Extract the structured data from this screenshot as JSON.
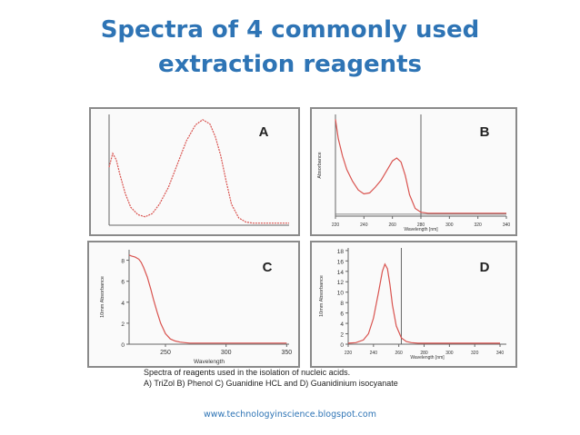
{
  "slide": {
    "title_line1": "Spectra of 4 commonly used",
    "title_line2": "extraction reagents",
    "footer_url": "www.technologyinscience.blogspot.com"
  },
  "figure": {
    "caption_line1": "Spectra of reagents used in the isolation of nucleic acids.",
    "caption_line2": "A) TriZol B) Phenol C) Guanidine HCL and D) Guanidinium isocyanate"
  },
  "colors": {
    "title": "#2e74b5",
    "trace": "#d9534f",
    "axis": "#444444",
    "cursor": "#555555"
  },
  "chart_data": [
    {
      "type": "line",
      "panel_label": "A",
      "series_name": "",
      "x": [
        0,
        2,
        4,
        6,
        9,
        12,
        16,
        20,
        24,
        28,
        33,
        38,
        43,
        48,
        52,
        56,
        59,
        62,
        65,
        68,
        72,
        76,
        80,
        85,
        90,
        100
      ],
      "y": [
        0.55,
        0.68,
        0.62,
        0.48,
        0.3,
        0.17,
        0.1,
        0.08,
        0.11,
        0.2,
        0.36,
        0.58,
        0.8,
        0.95,
        1.0,
        0.96,
        0.84,
        0.66,
        0.42,
        0.2,
        0.07,
        0.03,
        0.02,
        0.02,
        0.02,
        0.02
      ],
      "xlim": [
        0,
        100
      ],
      "ylim": [
        0,
        1.05
      ]
    },
    {
      "type": "line",
      "panel_label": "B",
      "series_name": "",
      "ylabel": "Absorbance",
      "xlabel": "Wavelength [nm]",
      "xticks": [
        "220",
        "240",
        "260",
        "280",
        "300",
        "320",
        "340"
      ],
      "x": [
        220,
        222,
        225,
        228,
        232,
        236,
        240,
        244,
        248,
        252,
        256,
        260,
        263,
        266,
        269,
        272,
        276,
        280,
        285,
        290,
        300,
        320,
        340
      ],
      "y": [
        1.0,
        0.8,
        0.62,
        0.48,
        0.36,
        0.27,
        0.23,
        0.24,
        0.3,
        0.37,
        0.47,
        0.57,
        0.6,
        0.56,
        0.42,
        0.22,
        0.08,
        0.04,
        0.03,
        0.03,
        0.03,
        0.03,
        0.03
      ],
      "xlim": [
        220,
        340
      ],
      "ylim": [
        0,
        1.05
      ],
      "cursor_x": 280
    },
    {
      "type": "line",
      "panel_label": "C",
      "series_name": "",
      "ylabel": "10mm Absorbance",
      "xlabel": "Wavelength",
      "yticks": [
        "0",
        "2",
        "4",
        "6",
        "8"
      ],
      "xticks": [
        "250",
        "300",
        "350"
      ],
      "x": [
        220,
        222,
        225,
        228,
        230,
        232,
        235,
        238,
        240,
        243,
        246,
        250,
        254,
        258,
        262,
        266,
        270,
        280,
        300,
        320,
        350
      ],
      "y": [
        8.5,
        8.4,
        8.3,
        8.1,
        7.8,
        7.3,
        6.4,
        5.2,
        4.3,
        3.1,
        2.0,
        1.0,
        0.5,
        0.3,
        0.2,
        0.15,
        0.1,
        0.1,
        0.1,
        0.1,
        0.1
      ],
      "xlim": [
        220,
        352
      ],
      "ylim": [
        0,
        9
      ]
    },
    {
      "type": "line",
      "panel_label": "D",
      "series_name": "",
      "ylabel": "10mm Absorbance",
      "xlabel": "Wavelength [nm]",
      "yticks": [
        "0",
        "2",
        "4",
        "6",
        "8",
        "10",
        "12",
        "14",
        "16",
        "18"
      ],
      "xticks": [
        "220",
        "240",
        "260",
        "280",
        "300",
        "320",
        "340"
      ],
      "x": [
        220,
        226,
        232,
        236,
        240,
        244,
        247,
        249,
        251,
        253,
        255,
        258,
        262,
        266,
        270,
        275,
        280,
        300,
        320,
        340
      ],
      "y": [
        0.2,
        0.3,
        0.8,
        2.0,
        5.0,
        10.0,
        14.0,
        15.4,
        14.5,
        11.5,
        7.5,
        3.5,
        1.2,
        0.5,
        0.3,
        0.2,
        0.2,
        0.2,
        0.2,
        0.2
      ],
      "xlim": [
        220,
        345
      ],
      "ylim": [
        0,
        18.5
      ],
      "cursor_x": 262
    }
  ]
}
